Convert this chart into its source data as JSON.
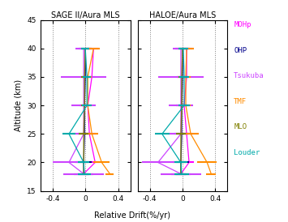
{
  "title_left": "SAGE II/Aura MLS",
  "title_right": "HALOE/Aura MLS",
  "xlabel": "Relative Drift(%/yr)",
  "ylabel": "Altitude (km)",
  "ylim": [
    15,
    45
  ],
  "xlim": [
    -0.55,
    0.55
  ],
  "xticks": [
    -0.4,
    0,
    0.4
  ],
  "yticks": [
    15,
    20,
    25,
    30,
    35,
    40,
    45
  ],
  "dotted_lines": [
    -0.4,
    0,
    0.4
  ],
  "stations": [
    "MOHp",
    "OHP",
    "Tsukuba",
    "TMF",
    "MLO",
    "Louder"
  ],
  "colors": [
    "#ff00ff",
    "#00008b",
    "#cc44ff",
    "#ff8c00",
    "#808000",
    "#00aaaa"
  ],
  "sage_data": {
    "MOHp": {
      "altitudes": [
        18,
        20,
        25,
        30,
        35,
        40
      ],
      "drifts": [
        -0.02,
        0.12,
        0.05,
        0.03,
        0.08,
        0.1
      ],
      "errors": [
        0.07,
        0.06,
        0.05,
        0.04,
        0.05,
        0.06
      ]
    },
    "OHP": {
      "altitudes": [
        18,
        20,
        25,
        30,
        35,
        40
      ],
      "drifts": [
        -0.02,
        -0.02,
        -0.01,
        -0.01,
        0.0,
        0.0
      ],
      "errors": [
        0.12,
        0.1,
        0.08,
        0.06,
        0.06,
        0.08
      ]
    },
    "Tsukuba": {
      "altitudes": [
        18,
        20,
        25,
        30,
        35,
        40
      ],
      "drifts": [
        -0.02,
        -0.2,
        -0.02,
        -0.02,
        -0.02,
        -0.02
      ],
      "errors": [
        0.25,
        0.2,
        0.15,
        0.15,
        0.28,
        0.1
      ]
    },
    "TMF": {
      "altitudes": [
        18,
        20,
        25,
        30,
        35,
        40
      ],
      "drifts": [
        0.3,
        0.2,
        0.08,
        0.03,
        0.03,
        0.1
      ],
      "errors": [
        0.05,
        0.1,
        0.08,
        0.05,
        0.05,
        0.08
      ]
    },
    "MLO": {
      "altitudes": [
        18,
        20,
        25,
        30,
        35,
        40
      ],
      "drifts": [
        -0.02,
        -0.02,
        -0.02,
        -0.01,
        -0.01,
        0.0
      ],
      "errors": [
        0.06,
        0.06,
        0.06,
        0.04,
        0.04,
        0.05
      ]
    },
    "Louder": {
      "altitudes": [
        18,
        20,
        25,
        30,
        35,
        40
      ],
      "drifts": [
        -0.01,
        -0.02,
        -0.2,
        0.02,
        0.02,
        0.0
      ],
      "errors": [
        0.08,
        0.07,
        0.08,
        0.06,
        0.05,
        0.05
      ]
    }
  },
  "haloe_data": {
    "MOHp": {
      "altitudes": [
        18,
        20,
        25,
        30,
        35,
        40
      ],
      "drifts": [
        -0.02,
        0.08,
        0.05,
        0.02,
        0.05,
        0.05
      ],
      "errors": [
        0.07,
        0.06,
        0.05,
        0.04,
        0.05,
        0.07
      ]
    },
    "OHP": {
      "altitudes": [
        18,
        20,
        25,
        30,
        35,
        40
      ],
      "drifts": [
        -0.02,
        -0.02,
        -0.01,
        -0.01,
        0.0,
        0.0
      ],
      "errors": [
        0.12,
        0.1,
        0.09,
        0.07,
        0.07,
        0.09
      ]
    },
    "Tsukuba": {
      "altitudes": [
        18,
        20,
        25,
        30,
        35,
        40
      ],
      "drifts": [
        -0.02,
        -0.3,
        -0.02,
        -0.02,
        -0.02,
        -0.02
      ],
      "errors": [
        0.25,
        0.2,
        0.15,
        0.15,
        0.28,
        0.1
      ]
    },
    "TMF": {
      "altitudes": [
        18,
        20,
        25,
        30,
        35,
        40
      ],
      "drifts": [
        0.35,
        0.3,
        0.1,
        0.04,
        0.04,
        0.05
      ],
      "errors": [
        0.06,
        0.12,
        0.1,
        0.06,
        0.06,
        0.09
      ]
    },
    "MLO": {
      "altitudes": [
        18,
        20,
        25,
        30,
        35,
        40
      ],
      "drifts": [
        -0.02,
        -0.02,
        -0.02,
        -0.01,
        -0.01,
        0.0
      ],
      "errors": [
        0.06,
        0.06,
        0.06,
        0.04,
        0.04,
        0.05
      ]
    },
    "Louder": {
      "altitudes": [
        18,
        20,
        25,
        30,
        35,
        40
      ],
      "drifts": [
        -0.01,
        -0.02,
        -0.25,
        0.02,
        0.02,
        0.01
      ],
      "errors": [
        0.09,
        0.08,
        0.09,
        0.07,
        0.06,
        0.06
      ]
    }
  }
}
